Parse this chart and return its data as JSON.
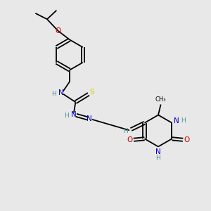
{
  "bg_color": "#e8e8e8",
  "bond_color": "#000000",
  "N_color": "#0000cc",
  "O_color": "#cc0000",
  "S_color": "#cccc00",
  "H_color": "#4a9090",
  "lw": 1.3,
  "fs": 7.5,
  "fs_small": 6.5,
  "xlim": [
    0,
    10
  ],
  "ylim": [
    0,
    10
  ]
}
